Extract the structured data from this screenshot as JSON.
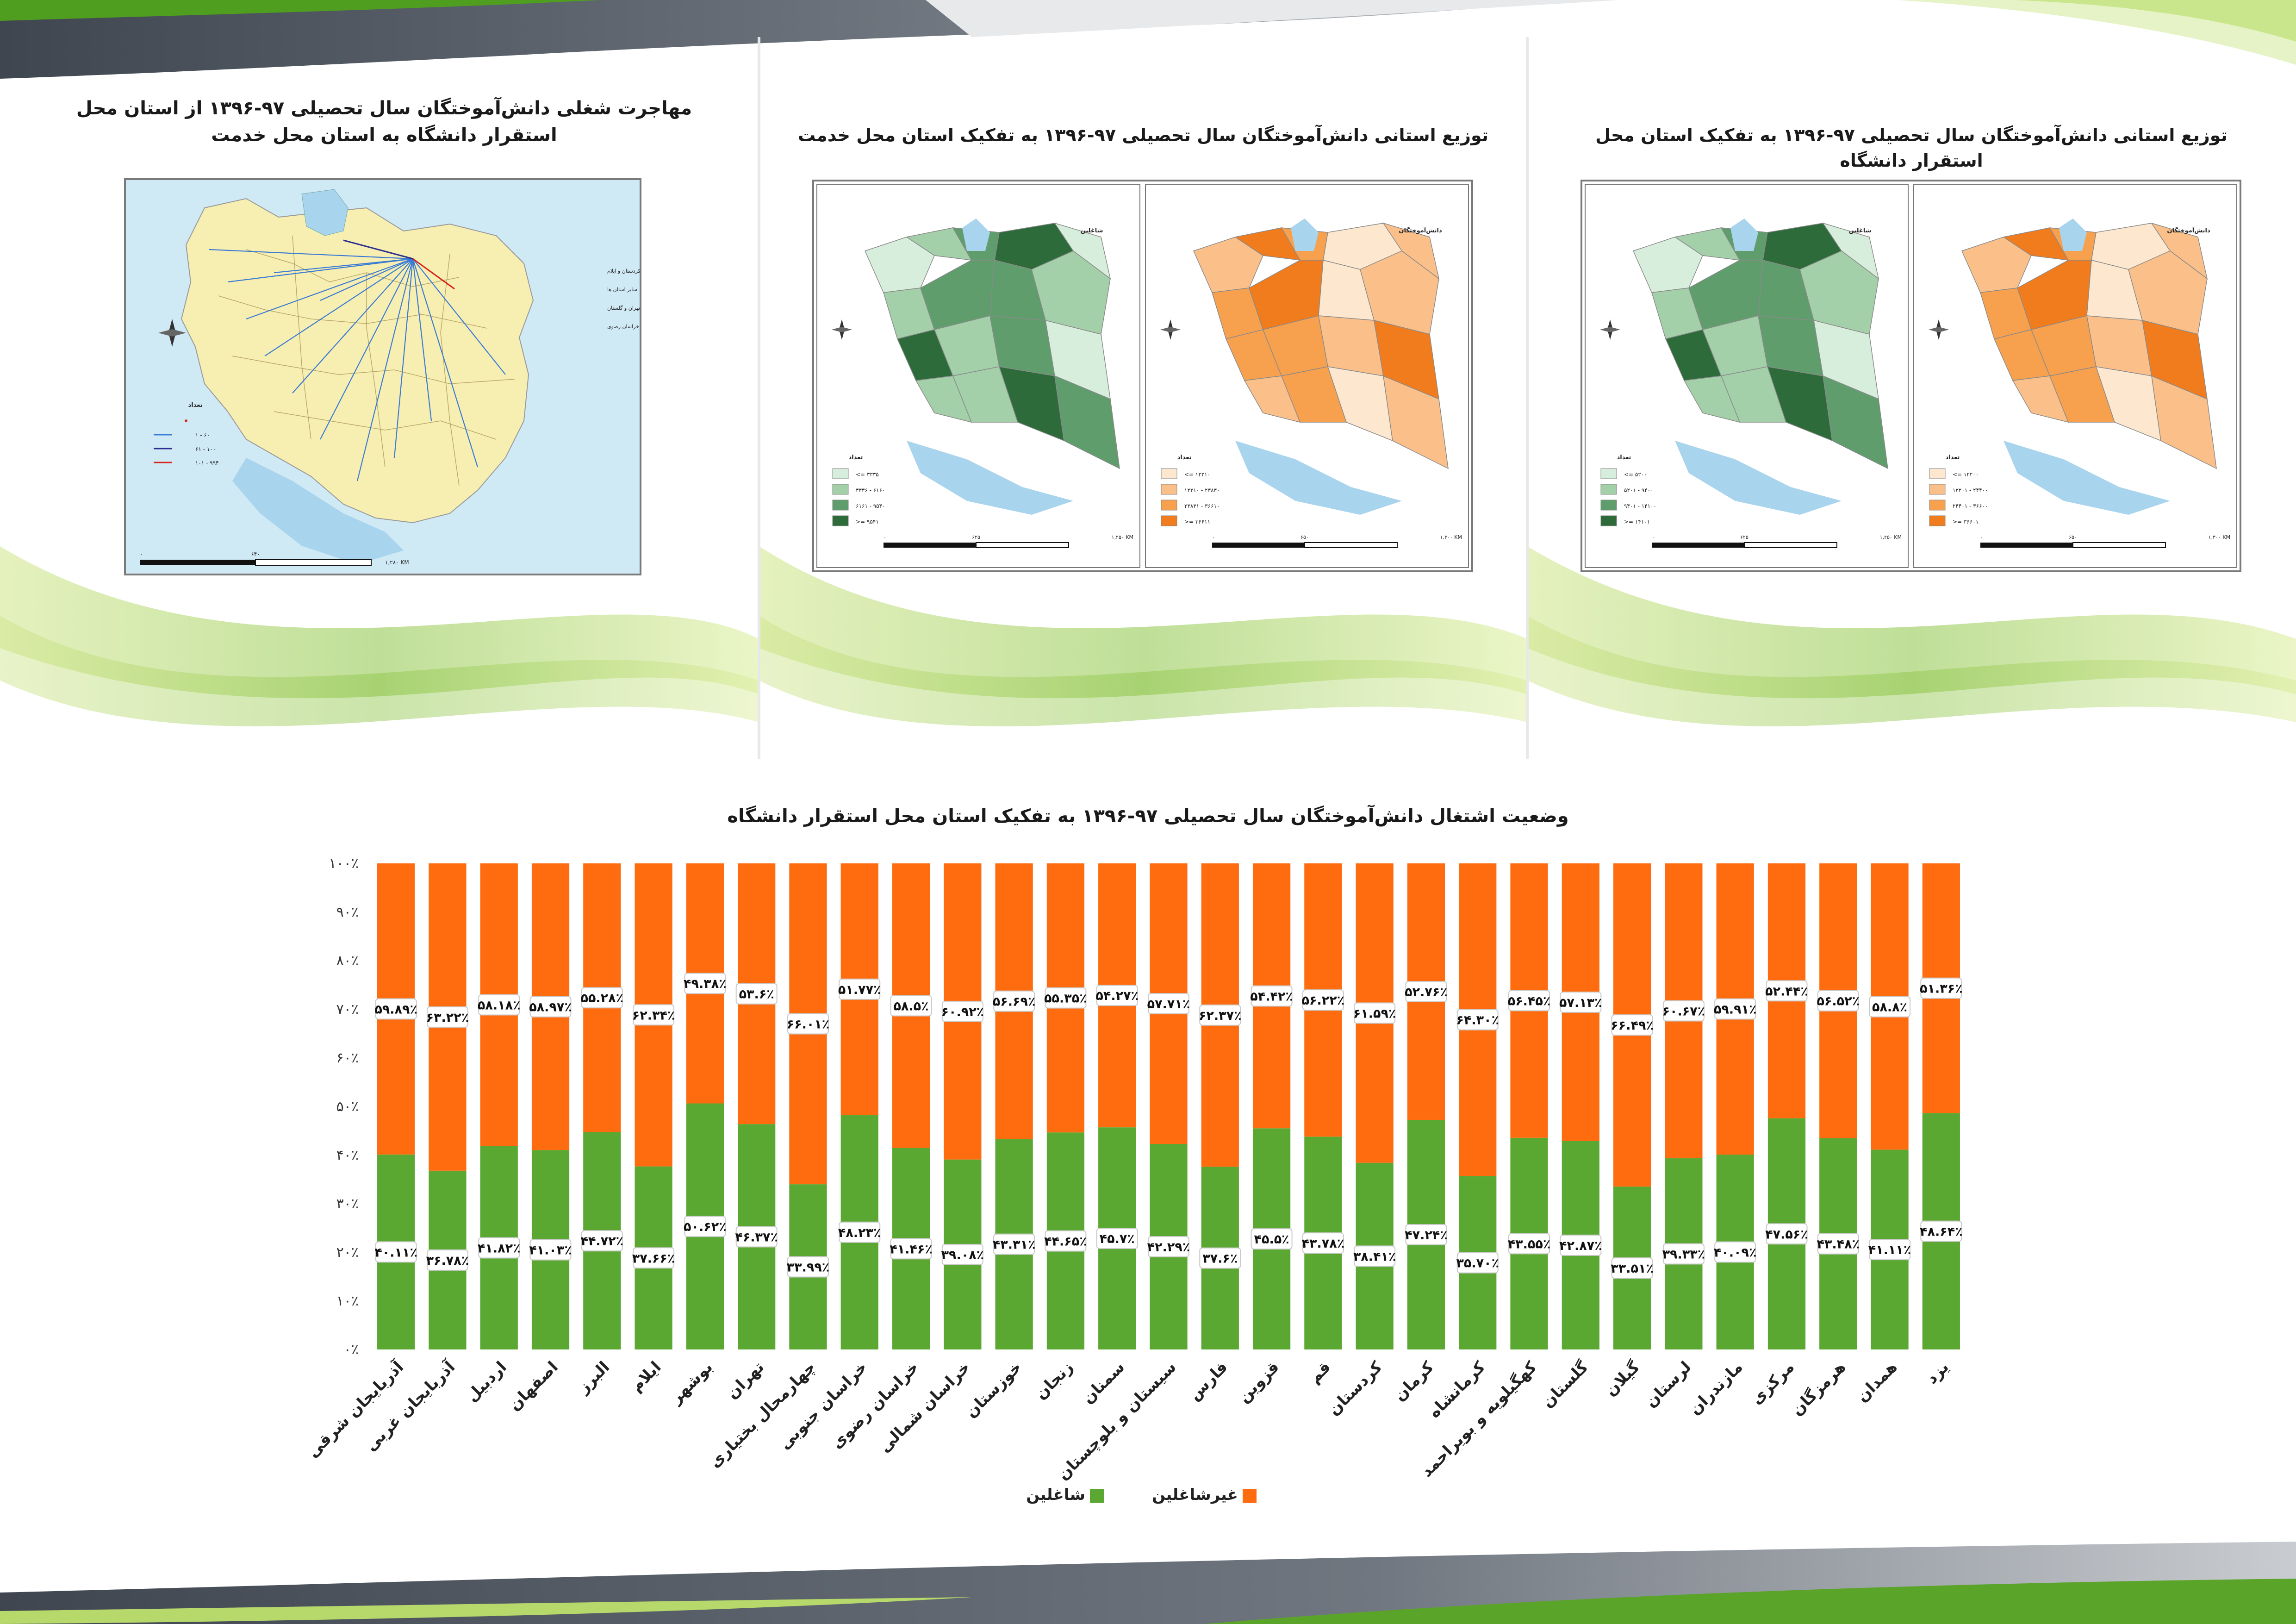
{
  "panels": {
    "map1": {
      "title": "مهاجرت شغلی دانش‌آموختگان سال تحصیلی ۹۷-۱۳۹۶ از استان محل استقرار دانشگاه به استان محل خدمت",
      "map_label_lines": [
        "کردستان و ایلام",
        "سایر استان ها",
        "تهران و گلستان",
        "خراسان شمالی و خراسان رضوی"
      ],
      "legend_title": "تعداد",
      "legend_items": [
        "۱ - ۶۰",
        "۶۱ - ۱۰۰",
        "۱۰۱ - ۹۹۴"
      ],
      "scale_end": "۱,۲۸۰ KM",
      "scale_mid": "۶۴۰",
      "scale_start": "۰"
    },
    "map2": {
      "title": "توزیع استانی دانش‌آموختگان سال تحصیلی ۹۷-۱۳۹۶ به تفکیک استان محل خدمت",
      "sub_right": "دانش‌آموختگان",
      "sub_left": "شاغلین",
      "legend_title": "تعداد",
      "legend_right": [
        "<= ۱۲۲۱۰",
        "۱۲۲۱۰ - ۲۳۸۳۰",
        "۲۳۸۳۱ - ۳۶۶۱۰",
        ">= ۳۶۶۱۱"
      ],
      "legend_left": [
        "<= ۳۳۳۵",
        "۳۳۳۶ - ۶۱۶۰",
        "۶۱۶۱ - ۹۵۴۰",
        ">= ۹۵۴۱"
      ],
      "scale_right_mid": "۶۵۰",
      "scale_right_end": "۱,۳۰۰ KM",
      "scale_left_mid": "۶۲۵",
      "scale_left_end": "۱,۲۵۰ KM"
    },
    "map3": {
      "title": "توزیع استانی دانش‌آموختگان سال تحصیلی ۹۷-۱۳۹۶ به تفکیک استان محل استقرار دانشگاه",
      "sub_right": "دانش‌آموختگان",
      "sub_left": "شاغلین",
      "legend_title": "تعداد",
      "legend_right": [
        "<= ۱۲۲۰۰",
        "۱۲۲۰۱ - ۲۴۴۰۰",
        "۲۴۴۰۱ - ۳۶۶۰۰",
        ">= ۳۶۶۰۱"
      ],
      "legend_left": [
        "<= ۵۲۰۰",
        "۵۲۰۱ - ۹۴۰۰",
        "۹۴۰۱ - ۱۴۱۰۰",
        ">= ۱۴۱۰۱"
      ],
      "scale_right_mid": "۶۵۰",
      "scale_right_end": "۱,۳۰۰ KM",
      "scale_left_mid": "۶۲۵",
      "scale_left_end": "۱,۲۵۰ KM"
    }
  },
  "colors": {
    "employed": "#5aa832",
    "unemployed": "#ff6b0f",
    "orange_scale": [
      "#fde8cf",
      "#fbc08a",
      "#f7a14e",
      "#f07c1e"
    ],
    "green_scale": [
      "#d8eedc",
      "#a3cfa9",
      "#5f9e6c",
      "#2e6b3a"
    ],
    "map_yellow": "#f7efb1",
    "water": "#a8d4ee",
    "leaf_green": "#8cc63f"
  },
  "chart_data": {
    "type": "bar",
    "stacked": true,
    "title": "وضعیت اشتغال دانش‌آموختگان سال تحصیلی ۹۷-۱۳۹۶ به تفکیک استان محل استقرار دانشگاه",
    "y_ticks": [
      "۰٪",
      "۱۰٪",
      "۲۰٪",
      "۳۰٪",
      "۴۰٪",
      "۵۰٪",
      "۶۰٪",
      "۷۰٪",
      "۸۰٪",
      "۹۰٪",
      "۱۰۰٪"
    ],
    "ylim": [
      0,
      100
    ],
    "categories": [
      "آذربایجان شرقی",
      "آذربایجان غربی",
      "اردبیل",
      "اصفهان",
      "البرز",
      "ایلام",
      "بوشهر",
      "تهران",
      "چهارمحال بختیاری",
      "خراسان جنوبی",
      "خراسان رضوی",
      "خراسان شمالی",
      "خوزستان",
      "زنجان",
      "سمنان",
      "سیستان و بلوچستان",
      "فارس",
      "قزوین",
      "قم",
      "کردستان",
      "کرمان",
      "کرمانشاه",
      "کهگیلویه و بویراحمد",
      "گلستان",
      "گیلان",
      "لرستان",
      "مازندران",
      "مرکزی",
      "هرمزگان",
      "همدان",
      "یزد"
    ],
    "series": [
      {
        "name": "شاغلین",
        "values": [
          40.11,
          36.78,
          41.82,
          41.03,
          44.72,
          37.66,
          50.62,
          46.37,
          33.99,
          48.23,
          41.46,
          39.08,
          43.31,
          44.65,
          45.7,
          42.29,
          37.6,
          45.5,
          43.78,
          38.41,
          47.24,
          35.7,
          43.55,
          42.87,
          33.51,
          39.33,
          40.09,
          47.56,
          43.48,
          41.11,
          48.64
        ],
        "labels": [
          "۴۰.۱۱٪",
          "۳۶.۷۸٪",
          "۴۱.۸۲٪",
          "۴۱.۰۳٪",
          "۴۴.۷۲٪",
          "۳۷.۶۶٪",
          "۵۰.۶۲٪",
          "۴۶.۳۷٪",
          "۳۳.۹۹٪",
          "۴۸.۲۳٪",
          "۴۱.۴۶٪",
          "۳۹.۰۸٪",
          "۴۳.۳۱٪",
          "۴۴.۶۵٪",
          "۴۵.۷٪",
          "۴۲.۲۹٪",
          "۳۷.۶٪",
          "۴۵.۵٪",
          "۴۳.۷۸٪",
          "۳۸.۴۱٪",
          "۴۷.۲۴٪",
          "۳۵.۷۰٪",
          "۴۳.۵۵٪",
          "۴۲.۸۷٪",
          "۳۳.۵۱٪",
          "۳۹.۳۳٪",
          "۴۰.۰۹٪",
          "۴۷.۵۶٪",
          "۴۳.۴۸٪",
          "۴۱.۱۱٪",
          "۴۸.۶۴٪"
        ]
      },
      {
        "name": "غیرشاغلین",
        "values": [
          59.89,
          63.22,
          58.18,
          58.97,
          55.28,
          62.34,
          49.38,
          53.6,
          66.01,
          51.77,
          58.5,
          60.92,
          56.69,
          55.35,
          54.27,
          57.71,
          62.37,
          54.42,
          56.22,
          61.59,
          52.76,
          64.3,
          56.45,
          57.13,
          66.49,
          60.67,
          59.91,
          52.44,
          56.52,
          58.8,
          51.36
        ],
        "labels": [
          "۵۹.۸۹٪",
          "۶۳.۲۲٪",
          "۵۸.۱۸٪",
          "۵۸.۹۷٪",
          "۵۵.۲۸٪",
          "۶۲.۳۴٪",
          "۴۹.۳۸٪",
          "۵۳.۶٪",
          "۶۶.۰۱٪",
          "۵۱.۷۷٪",
          "۵۸.۵٪",
          "۶۰.۹۲٪",
          "۵۶.۶۹٪",
          "۵۵.۳۵٪",
          "۵۴.۲۷٪",
          "۵۷.۷۱٪",
          "۶۲.۳۷٪",
          "۵۴.۴۲٪",
          "۵۶.۲۲٪",
          "۶۱.۵۹٪",
          "۵۲.۷۶٪",
          "۶۴.۳۰٪",
          "۵۶.۴۵٪",
          "۵۷.۱۳٪",
          "۶۶.۴۹٪",
          "۶۰.۶۷٪",
          "۵۹.۹۱٪",
          "۵۲.۴۴٪",
          "۵۶.۵۲٪",
          "۵۸.۸٪",
          "۵۱.۳۶٪"
        ]
      }
    ],
    "legend": [
      "شاغلین",
      "غیرشاغلین"
    ],
    "legend_position": "bottom"
  }
}
